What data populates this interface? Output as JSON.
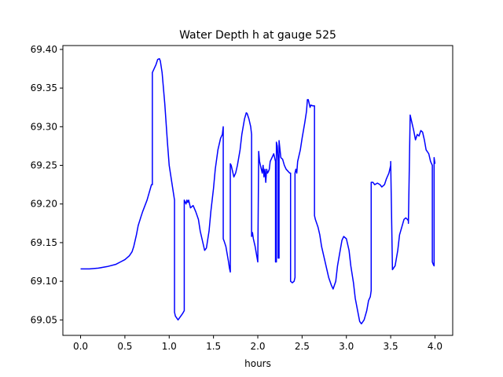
{
  "chart_data": {
    "type": "line",
    "title": "Water Depth h at gauge 525",
    "xlabel": "hours",
    "ylabel": "",
    "xlim": [
      -0.2,
      4.2
    ],
    "ylim": [
      69.03,
      69.405
    ],
    "xticks": [
      0.0,
      0.5,
      1.0,
      1.5,
      2.0,
      2.5,
      3.0,
      3.5,
      4.0
    ],
    "xtick_labels": [
      "0.0",
      "0.5",
      "1.0",
      "1.5",
      "2.0",
      "2.5",
      "3.0",
      "3.5",
      "4.0"
    ],
    "yticks": [
      69.05,
      69.1,
      69.15,
      69.2,
      69.25,
      69.3,
      69.35,
      69.4
    ],
    "ytick_labels": [
      "69.05",
      "69.10",
      "69.15",
      "69.20",
      "69.25",
      "69.30",
      "69.35",
      "69.40"
    ],
    "grid": false,
    "legend": "none",
    "series": [
      {
        "color": "#0000ff",
        "x": [
          0.0,
          0.1,
          0.2,
          0.25,
          0.3,
          0.4,
          0.45,
          0.5,
          0.55,
          0.58,
          0.6,
          0.63,
          0.65,
          0.68,
          0.7,
          0.75,
          0.8,
          0.81,
          0.81,
          0.85,
          0.87,
          0.89,
          0.9,
          0.92,
          0.95,
          0.98,
          1.0,
          1.02,
          1.06,
          1.06,
          1.07,
          1.1,
          1.15,
          1.17,
          1.17,
          1.19,
          1.2,
          1.21,
          1.22,
          1.24,
          1.27,
          1.3,
          1.33,
          1.35,
          1.37,
          1.4,
          1.42,
          1.45,
          1.47,
          1.5,
          1.52,
          1.55,
          1.58,
          1.6,
          1.61,
          1.61,
          1.62,
          1.64,
          1.67,
          1.68,
          1.69,
          1.69,
          1.7,
          1.72,
          1.73,
          1.75,
          1.77,
          1.8,
          1.82,
          1.85,
          1.87,
          1.88,
          1.9,
          1.92,
          1.93,
          1.93,
          1.94,
          1.95,
          1.97,
          2.0,
          2.01,
          2.01,
          2.02,
          2.04,
          2.05,
          2.06,
          2.07,
          2.08,
          2.09,
          2.1,
          2.11,
          2.12,
          2.13,
          2.14,
          2.16,
          2.18,
          2.2,
          2.2,
          2.21,
          2.21,
          2.22,
          2.23,
          2.23,
          2.24,
          2.24,
          2.26,
          2.28,
          2.3,
          2.32,
          2.36,
          2.37,
          2.37,
          2.39,
          2.41,
          2.42,
          2.42,
          2.43,
          2.44,
          2.45,
          2.48,
          2.5,
          2.53,
          2.55,
          2.56,
          2.57,
          2.59,
          2.6,
          2.62,
          2.64,
          2.64,
          2.65,
          2.68,
          2.7,
          2.72,
          2.75,
          2.8,
          2.83,
          2.85,
          2.88,
          2.9,
          2.93,
          2.95,
          2.97,
          3.0,
          3.03,
          3.05,
          3.08,
          3.1,
          3.13,
          3.15,
          3.17,
          3.2,
          3.23,
          3.25,
          3.27,
          3.28,
          3.28,
          3.3,
          3.32,
          3.35,
          3.38,
          3.4,
          3.43,
          3.45,
          3.48,
          3.5,
          3.5,
          3.52,
          3.55,
          3.58,
          3.6,
          3.63,
          3.65,
          3.67,
          3.69,
          3.7,
          3.7,
          3.72,
          3.74,
          3.76,
          3.78,
          3.8,
          3.82,
          3.84,
          3.86,
          3.88,
          3.9,
          3.93,
          3.95,
          3.97,
          3.97,
          3.98,
          3.99,
          3.99,
          4.0
        ],
        "y": [
          69.116,
          69.116,
          69.117,
          69.118,
          69.119,
          69.122,
          69.125,
          69.128,
          69.133,
          69.138,
          69.145,
          69.16,
          69.172,
          69.183,
          69.19,
          69.205,
          69.225,
          69.225,
          69.37,
          69.38,
          69.387,
          69.388,
          69.385,
          69.37,
          69.33,
          69.28,
          69.25,
          69.235,
          69.205,
          69.06,
          69.055,
          69.05,
          69.058,
          69.062,
          69.205,
          69.2,
          69.205,
          69.202,
          69.205,
          69.195,
          69.198,
          69.19,
          69.18,
          69.165,
          69.155,
          69.14,
          69.143,
          69.165,
          69.19,
          69.22,
          69.245,
          69.27,
          69.285,
          69.29,
          69.3,
          69.155,
          69.152,
          69.145,
          69.125,
          69.117,
          69.112,
          69.252,
          69.25,
          69.24,
          69.235,
          69.24,
          69.25,
          69.27,
          69.29,
          69.31,
          69.318,
          69.317,
          69.31,
          69.3,
          69.29,
          69.158,
          69.163,
          69.155,
          69.145,
          69.125,
          69.265,
          69.268,
          69.255,
          69.245,
          69.24,
          69.25,
          69.235,
          69.245,
          69.228,
          69.245,
          69.24,
          69.242,
          69.245,
          69.255,
          69.26,
          69.265,
          69.255,
          69.125,
          69.125,
          69.28,
          69.275,
          69.255,
          69.13,
          69.13,
          69.282,
          69.26,
          69.258,
          69.25,
          69.245,
          69.24,
          69.24,
          69.1,
          69.098,
          69.1,
          69.105,
          69.24,
          69.245,
          69.24,
          69.255,
          69.27,
          69.285,
          69.305,
          69.32,
          69.335,
          69.335,
          69.325,
          69.328,
          69.327,
          69.327,
          69.185,
          69.18,
          69.17,
          69.16,
          69.145,
          69.13,
          69.105,
          69.095,
          69.09,
          69.1,
          69.12,
          69.14,
          69.153,
          69.158,
          69.155,
          69.14,
          69.12,
          69.098,
          69.078,
          69.06,
          69.048,
          69.045,
          69.05,
          69.062,
          69.075,
          69.08,
          69.088,
          69.228,
          69.228,
          69.225,
          69.227,
          69.225,
          69.222,
          69.225,
          69.232,
          69.24,
          69.25,
          69.255,
          69.115,
          69.12,
          69.14,
          69.16,
          69.172,
          69.18,
          69.182,
          69.18,
          69.178,
          69.175,
          69.315,
          69.305,
          69.295,
          69.283,
          69.29,
          69.288,
          69.295,
          69.293,
          69.283,
          69.27,
          69.265,
          69.255,
          69.25,
          69.125,
          69.122,
          69.12,
          69.26,
          69.252
        ]
      }
    ]
  }
}
